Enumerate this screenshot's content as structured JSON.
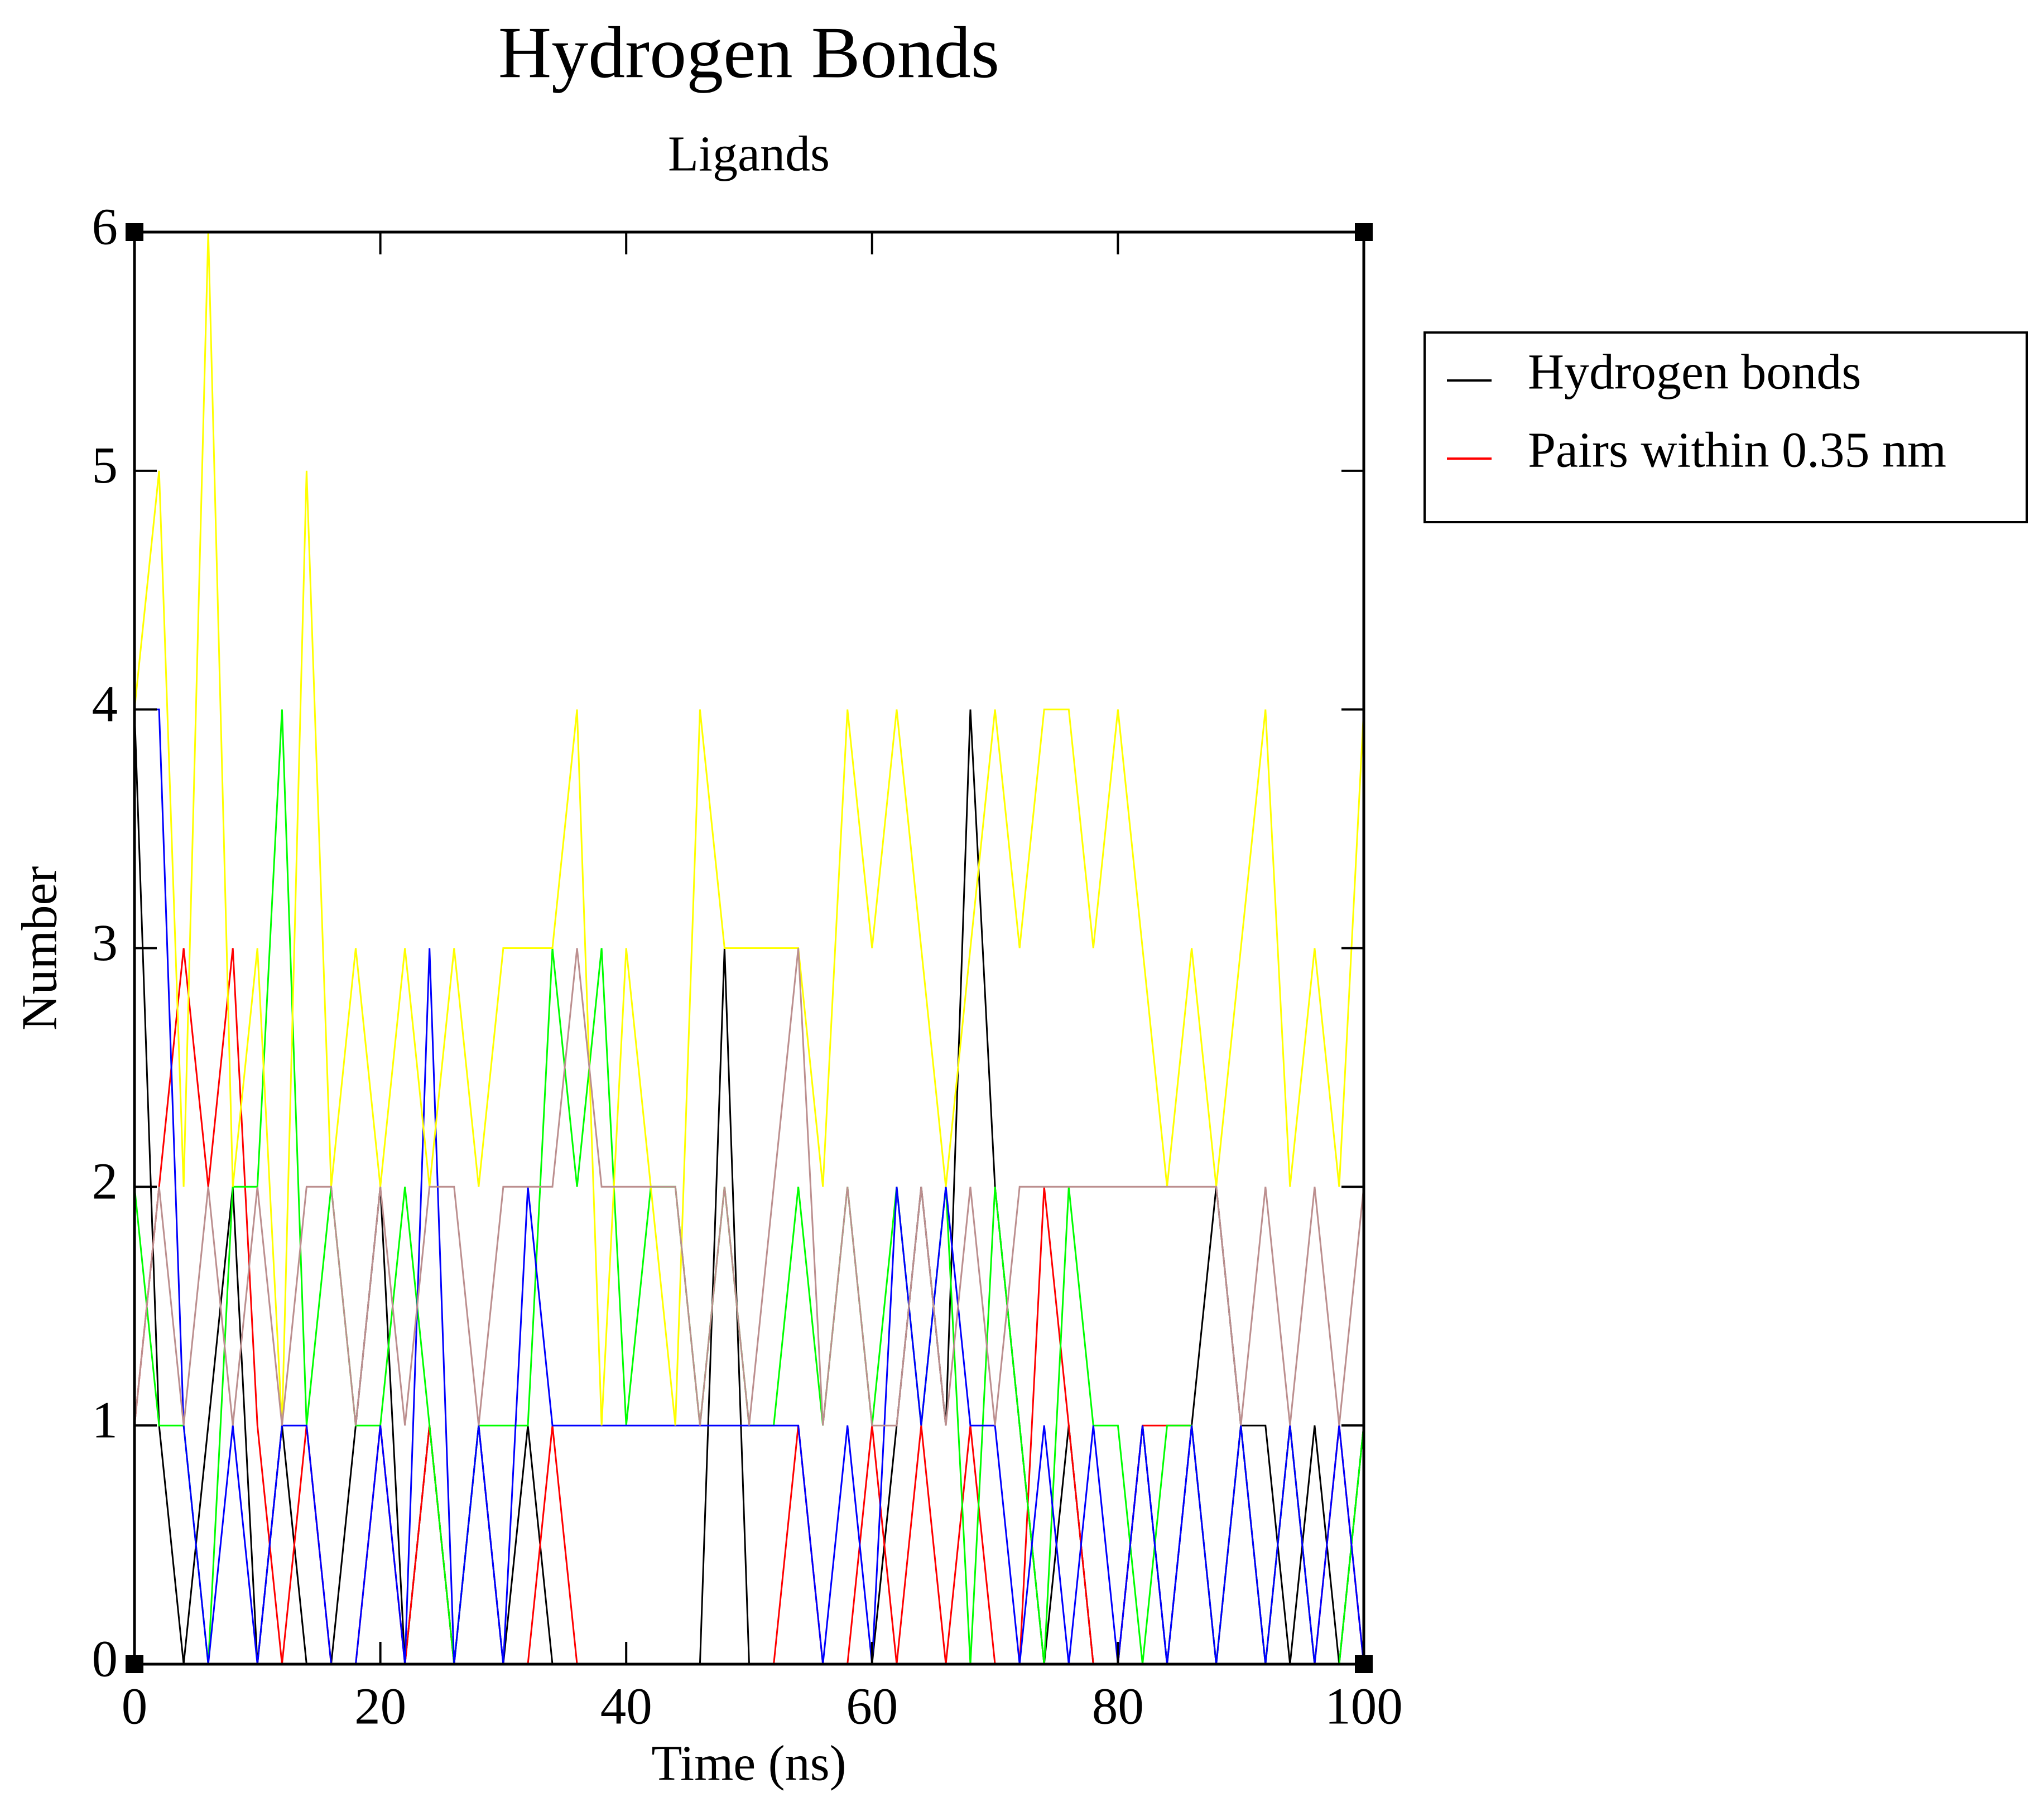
{
  "chart_data": {
    "type": "line",
    "title": "Hydrogen Bonds",
    "subtitle": "Ligands",
    "x_label": "Time (ns)",
    "y_label": "Number",
    "x": [
      0,
      2,
      4,
      6,
      8,
      10,
      12,
      14,
      16,
      18,
      20,
      22,
      24,
      26,
      28,
      30,
      32,
      34,
      36,
      38,
      40,
      42,
      44,
      46,
      48,
      50,
      52,
      54,
      56,
      58,
      60,
      62,
      64,
      66,
      68,
      70,
      72,
      74,
      76,
      78,
      80,
      82,
      84,
      86,
      88,
      90,
      92,
      94,
      96,
      98,
      100
    ],
    "series": [
      {
        "name": "Hydrogen bonds",
        "color": "#000000",
        "values": [
          4,
          1,
          0,
          1,
          2,
          0,
          1,
          0,
          0,
          1,
          2,
          0,
          1,
          0,
          1,
          0,
          1,
          0,
          0,
          0,
          0,
          0,
          0,
          0,
          3,
          0,
          0,
          0,
          0,
          0,
          0,
          1,
          2,
          1,
          4,
          2,
          1,
          0,
          1,
          0,
          0,
          1,
          0,
          1,
          2,
          1,
          1,
          0,
          1,
          0,
          1
        ]
      },
      {
        "name": "Pairs within 0.35 nm",
        "color": "#ff0000",
        "values": [
          1,
          2,
          3,
          2,
          3,
          1,
          0,
          1,
          0,
          0,
          1,
          0,
          1,
          0,
          0,
          0,
          0,
          1,
          0,
          0,
          0,
          0,
          0,
          0,
          0,
          0,
          0,
          1,
          0,
          0,
          1,
          0,
          1,
          0,
          1,
          0,
          0,
          2,
          1,
          0,
          0,
          1,
          1,
          1,
          0,
          1,
          0,
          1,
          0,
          1,
          0
        ]
      },
      {
        "name": null,
        "color": "#00ff00",
        "values": [
          2,
          1,
          1,
          0,
          2,
          2,
          4,
          1,
          2,
          1,
          1,
          2,
          1,
          0,
          1,
          1,
          1,
          3,
          2,
          3,
          1,
          2,
          2,
          1,
          2,
          1,
          1,
          2,
          1,
          2,
          1,
          2,
          1,
          2,
          0,
          2,
          1,
          0,
          2,
          1,
          1,
          0,
          1,
          1,
          0,
          1,
          0,
          1,
          0,
          0,
          1
        ]
      },
      {
        "name": null,
        "color": "#0000ff",
        "values": [
          4,
          4,
          1,
          0,
          1,
          0,
          1,
          1,
          0,
          0,
          1,
          0,
          3,
          0,
          1,
          0,
          2,
          1,
          1,
          1,
          1,
          1,
          1,
          1,
          1,
          1,
          1,
          1,
          0,
          1,
          0,
          2,
          1,
          2,
          1,
          1,
          0,
          1,
          0,
          1,
          0,
          1,
          0,
          1,
          0,
          1,
          0,
          1,
          0,
          1,
          0
        ]
      },
      {
        "name": null,
        "color": "#ffff00",
        "values": [
          4,
          5,
          2,
          6,
          2,
          3,
          1,
          5,
          2,
          3,
          2,
          3,
          2,
          3,
          2,
          3,
          3,
          3,
          4,
          1,
          3,
          2,
          1,
          4,
          3,
          3,
          3,
          3,
          2,
          4,
          3,
          4,
          3,
          2,
          3,
          4,
          3,
          4,
          4,
          3,
          4,
          3,
          2,
          3,
          2,
          3,
          4,
          2,
          3,
          2,
          4
        ]
      },
      {
        "name": null,
        "color": "#bc8f8f",
        "values": [
          1,
          2,
          1,
          2,
          1,
          2,
          1,
          2,
          2,
          1,
          2,
          1,
          2,
          2,
          1,
          2,
          2,
          2,
          3,
          2,
          2,
          2,
          2,
          1,
          2,
          1,
          2,
          3,
          1,
          2,
          1,
          1,
          2,
          1,
          2,
          1,
          2,
          2,
          2,
          2,
          2,
          2,
          2,
          2,
          2,
          1,
          2,
          1,
          2,
          1,
          2
        ]
      }
    ],
    "xlim": [
      0,
      100
    ],
    "xticks": [
      0,
      20,
      40,
      60,
      80,
      100
    ],
    "ylim": [
      0,
      6
    ],
    "yticks": [
      0,
      1,
      2,
      3,
      4,
      5,
      6
    ],
    "grid": false,
    "legend": "outside-right"
  }
}
